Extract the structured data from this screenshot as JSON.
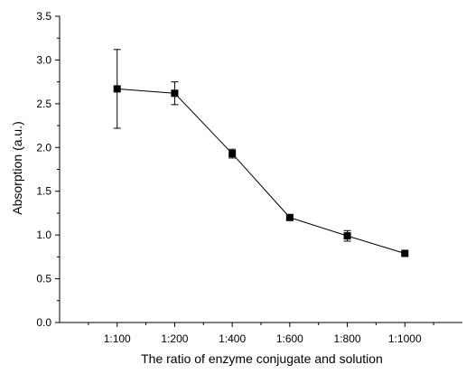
{
  "chart_data": {
    "type": "line",
    "xlabel": "The ratio of enzyme conjugate and solution",
    "ylabel": "Absorption (a.u.)",
    "categories": [
      "1:100",
      "1:200",
      "1:400",
      "1:600",
      "1:800",
      "1:1000"
    ],
    "series": [
      {
        "values": [
          2.67,
          2.62,
          1.93,
          1.2,
          0.99,
          0.79
        ],
        "errors": [
          0.45,
          0.13,
          0.05,
          0.03,
          0.06,
          0.02
        ],
        "marker": "square",
        "color": "#000000"
      }
    ],
    "ylim": [
      0,
      3.5
    ],
    "yticks": [
      "0.0",
      "0.5",
      "1.0",
      "1.5",
      "2.0",
      "2.5",
      "3.0",
      "3.5"
    ],
    "grid": false
  }
}
